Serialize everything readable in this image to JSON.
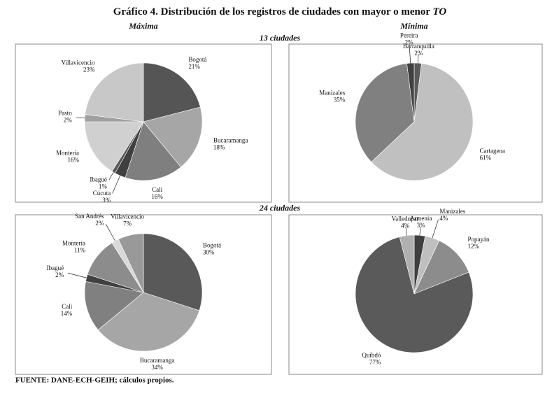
{
  "title": "Gráfico 4. Distribución de los registros de ciudades con mayor o menor",
  "title_italic": "TO",
  "column_labels": [
    "Máxima",
    "Mínima"
  ],
  "row_labels": [
    "13 ciudades",
    "24 ciudades"
  ],
  "source": "FUENTE: DANE-ECH-GEIH; cálculos propios.",
  "chart_data": [
    {
      "type": "pie",
      "categories": [
        "Bogotá",
        "Bucaramanga",
        "Cali",
        "Cúcuta",
        "Ibagué",
        "Montería",
        "Pasto",
        "Villavicencio"
      ],
      "values": [
        21,
        18,
        16,
        3,
        1,
        16,
        2,
        23
      ],
      "value_labels": [
        "21%",
        "18%",
        "16%",
        "3%",
        "1%",
        "16%",
        "2%",
        "23%"
      ],
      "colors": [
        "#555555",
        "#a6a6a6",
        "#7f7f7f",
        "#404040",
        "#595959",
        "#d0d0d0",
        "#a0a0a0",
        "#c8c8c8"
      ]
    },
    {
      "type": "pie",
      "categories": [
        "Barranquilla",
        "Cartagena",
        "Manizales",
        "Pereira"
      ],
      "values": [
        2,
        61,
        35,
        2
      ],
      "value_labels": [
        "2%",
        "61%",
        "35%",
        "2%"
      ],
      "colors": [
        "#595959",
        "#c0c0c0",
        "#808080",
        "#404040"
      ]
    },
    {
      "type": "pie",
      "categories": [
        "Bogotá",
        "Bucaramanga",
        "Cali",
        "Ibagué",
        "Montería",
        "San Andrés",
        "Villavicencio"
      ],
      "values": [
        30,
        34,
        14,
        2,
        11,
        2,
        7
      ],
      "value_labels": [
        "30%",
        "34%",
        "14%",
        "2%",
        "11%",
        "2%",
        "7%"
      ],
      "colors": [
        "#595959",
        "#a6a6a6",
        "#808080",
        "#404040",
        "#8c8c8c",
        "#d9d9d9",
        "#999999"
      ]
    },
    {
      "type": "pie",
      "categories": [
        "Armenia",
        "Manizales",
        "Popayán",
        "Quibdó",
        "Valledupar"
      ],
      "values": [
        3,
        4,
        12,
        77,
        4
      ],
      "value_labels": [
        "3%",
        "4%",
        "12%",
        "77%",
        "4%"
      ],
      "colors": [
        "#3f3f3f",
        "#bfbfbf",
        "#8c8c8c",
        "#5a5a5a",
        "#b0b0b0"
      ]
    }
  ]
}
